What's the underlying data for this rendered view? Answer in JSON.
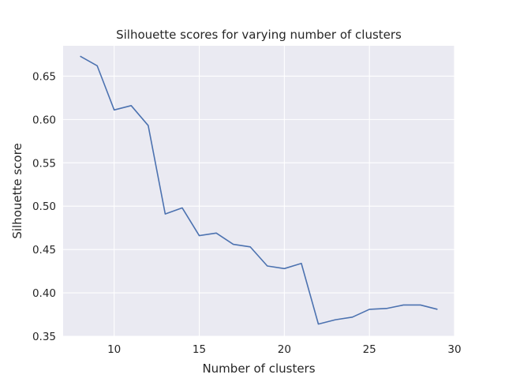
{
  "chart_data": {
    "type": "line",
    "title": "Silhouette scores for varying number of clusters",
    "xlabel": "Number of clusters",
    "ylabel": "Silhouette score",
    "xlim": [
      7,
      30
    ],
    "ylim": [
      0.35,
      0.685
    ],
    "xticks": [
      10,
      15,
      20,
      25,
      30
    ],
    "yticks": [
      0.35,
      0.4,
      0.45,
      0.5,
      0.55,
      0.6,
      0.65
    ],
    "xtick_labels": [
      "10",
      "15",
      "20",
      "25",
      "30"
    ],
    "ytick_labels": [
      "0.35",
      "0.40",
      "0.45",
      "0.50",
      "0.55",
      "0.60",
      "0.65"
    ],
    "grid": true,
    "colors": {
      "background": "#eaeaf2",
      "grid": "#ffffff",
      "line": "#4c72b0"
    },
    "series": [
      {
        "x": [
          8,
          9,
          10,
          11,
          12,
          13,
          14,
          15,
          16,
          17,
          18,
          19,
          20,
          21,
          22,
          23,
          24,
          25,
          26,
          27,
          28,
          29
        ],
        "values": [
          0.673,
          0.662,
          0.611,
          0.616,
          0.593,
          0.491,
          0.498,
          0.466,
          0.469,
          0.456,
          0.453,
          0.431,
          0.428,
          0.434,
          0.364,
          0.369,
          0.372,
          0.381,
          0.382,
          0.386,
          0.386,
          0.381
        ]
      }
    ]
  }
}
